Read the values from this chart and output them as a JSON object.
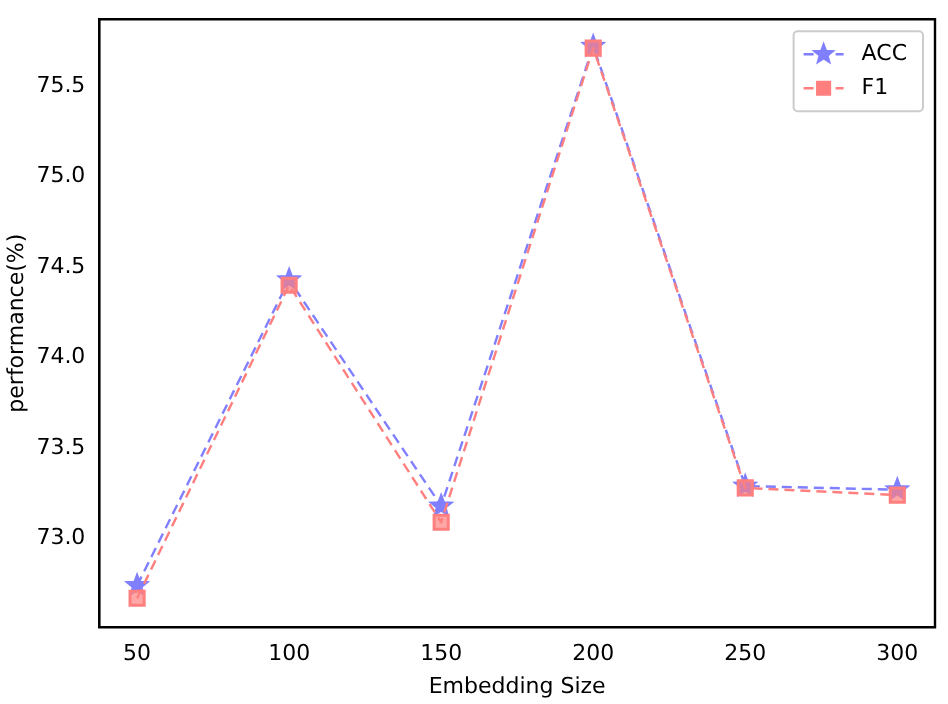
{
  "chart_data": {
    "type": "line",
    "xlabel": "Embedding Size",
    "ylabel": "performance(%)",
    "x": [
      50,
      100,
      150,
      200,
      250,
      300
    ],
    "series": [
      {
        "name": "ACC",
        "color": "#7f7fff",
        "values": [
          72.74,
          74.43,
          73.18,
          75.72,
          73.29,
          73.27
        ],
        "marker": "star"
      },
      {
        "name": "F1",
        "color": "#ff7f7f",
        "values": [
          72.67,
          74.4,
          73.09,
          75.71,
          73.28,
          73.24
        ],
        "marker": "square"
      }
    ],
    "xlim": [
      37.6,
      312.4
    ],
    "xticks": [
      50,
      100,
      150,
      200,
      250,
      300
    ],
    "ylim": [
      72.51,
      75.87
    ],
    "yticks": [
      {
        "value": 73.0,
        "label": "73.0"
      },
      {
        "value": 73.5,
        "label": "73.5"
      },
      {
        "value": 74.0,
        "label": "74.0"
      },
      {
        "value": 74.5,
        "label": "74.5"
      },
      {
        "value": 75.0,
        "label": "75.0"
      },
      {
        "value": 75.5,
        "label": "75.5"
      }
    ],
    "grid": false,
    "legend": "top right",
    "line_style": "dashed"
  }
}
